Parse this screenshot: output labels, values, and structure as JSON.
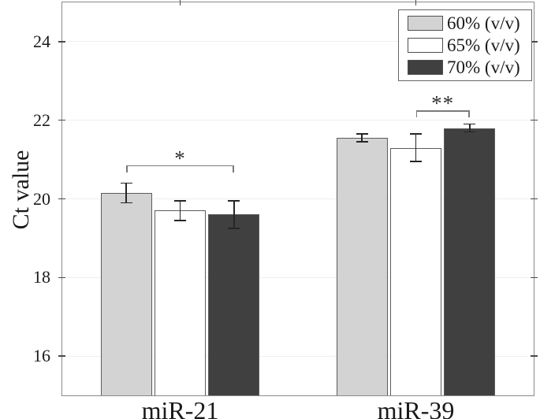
{
  "figure": {
    "background": "#ffffff",
    "accent_colors": {
      "grid": "#efefef",
      "axis_border": "#8a8a8a",
      "error_bar": "#262626",
      "bracket": "#7a7a7a"
    }
  },
  "chart_data": {
    "type": "bar",
    "title": "",
    "xlabel": "",
    "ylabel": "Ct value",
    "categories": [
      "miR-21",
      "miR-39"
    ],
    "series": [
      {
        "name": "60% (v/v)",
        "fill": "#d3d3d3",
        "values": [
          20.15,
          21.55
        ],
        "errors": [
          0.25,
          0.1
        ]
      },
      {
        "name": "65% (v/v)",
        "fill": "#ffffff",
        "values": [
          19.7,
          21.3
        ],
        "errors": [
          0.25,
          0.35
        ]
      },
      {
        "name": "70% (v/v)",
        "fill": "#404040",
        "values": [
          19.6,
          21.8
        ],
        "errors": [
          0.35,
          0.1
        ]
      }
    ],
    "ylim": [
      15,
      25
    ],
    "yticks": [
      16,
      18,
      20,
      22,
      24
    ],
    "grid": "horizontal",
    "legend_position": "top-right",
    "error_bars": true,
    "significance": [
      {
        "group": "miR-21",
        "from_series": "60% (v/v)",
        "to_series": "70% (v/v)",
        "label": "*",
        "level": 20.85
      },
      {
        "group": "miR-39",
        "from_series": "65% (v/v)",
        "to_series": "70% (v/v)",
        "label": "**",
        "level": 22.25
      }
    ]
  }
}
